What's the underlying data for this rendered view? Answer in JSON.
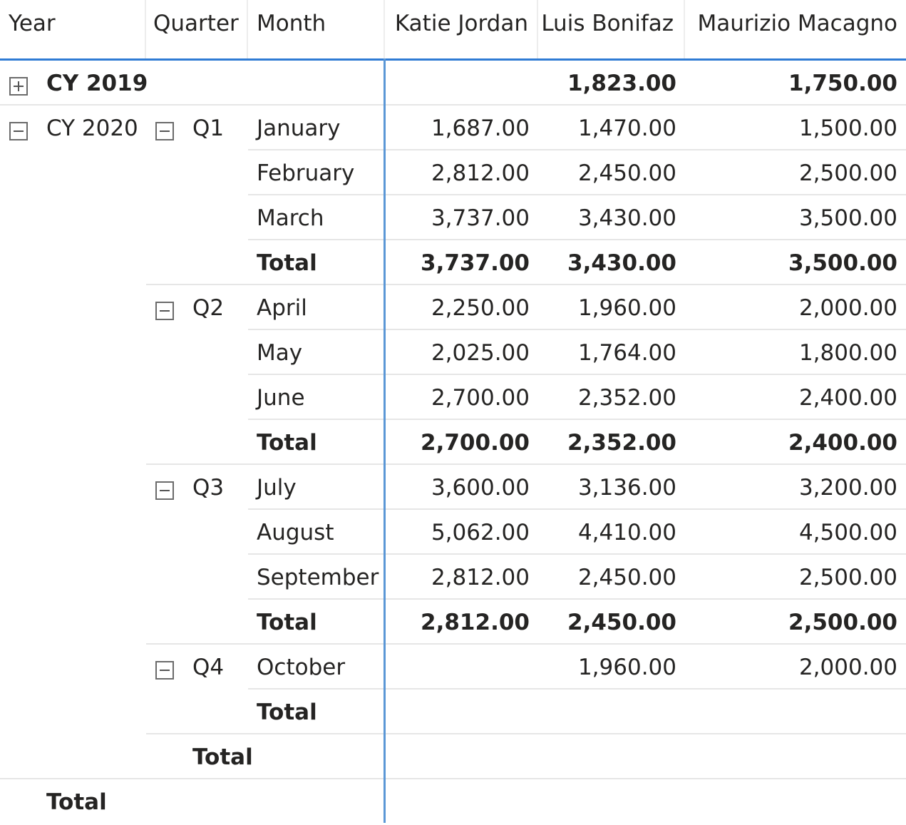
{
  "headers": {
    "year": "Year",
    "quarter": "Quarter",
    "month": "Month",
    "col1": "Katie Jordan",
    "col2": "Luis Bonifaz",
    "col3": "Maurizio Macagno"
  },
  "icons": {
    "expand": "plus-box-icon",
    "collapse": "minus-box-icon"
  },
  "rows": {
    "cy2019": {
      "label": "CY 2019",
      "v1": "",
      "v2": "1,823.00",
      "v3": "1,750.00"
    },
    "cy2020": {
      "label": "CY 2020"
    },
    "q1": {
      "label": "Q1"
    },
    "jan": {
      "label": "January",
      "v1": "1,687.00",
      "v2": "1,470.00",
      "v3": "1,500.00"
    },
    "feb": {
      "label": "February",
      "v1": "2,812.00",
      "v2": "2,450.00",
      "v3": "2,500.00"
    },
    "mar": {
      "label": "March",
      "v1": "3,737.00",
      "v2": "3,430.00",
      "v3": "3,500.00"
    },
    "q1total": {
      "label": "Total",
      "v1": "3,737.00",
      "v2": "3,430.00",
      "v3": "3,500.00"
    },
    "q2": {
      "label": "Q2"
    },
    "apr": {
      "label": "April",
      "v1": "2,250.00",
      "v2": "1,960.00",
      "v3": "2,000.00"
    },
    "may": {
      "label": "May",
      "v1": "2,025.00",
      "v2": "1,764.00",
      "v3": "1,800.00"
    },
    "jun": {
      "label": "June",
      "v1": "2,700.00",
      "v2": "2,352.00",
      "v3": "2,400.00"
    },
    "q2total": {
      "label": "Total",
      "v1": "2,700.00",
      "v2": "2,352.00",
      "v3": "2,400.00"
    },
    "q3": {
      "label": "Q3"
    },
    "jul": {
      "label": "July",
      "v1": "3,600.00",
      "v2": "3,136.00",
      "v3": "3,200.00"
    },
    "aug": {
      "label": "August",
      "v1": "5,062.00",
      "v2": "4,410.00",
      "v3": "4,500.00"
    },
    "sep": {
      "label": "September",
      "v1": "2,812.00",
      "v2": "2,450.00",
      "v3": "2,500.00"
    },
    "q3total": {
      "label": "Total",
      "v1": "2,812.00",
      "v2": "2,450.00",
      "v3": "2,500.00"
    },
    "q4": {
      "label": "Q4"
    },
    "oct": {
      "label": "October",
      "v1": "",
      "v2": "1,960.00",
      "v3": "2,000.00"
    },
    "q4total": {
      "label": "Total"
    },
    "yeartotal": {
      "label": "Total"
    },
    "grandtotal": {
      "label": "Total"
    }
  }
}
